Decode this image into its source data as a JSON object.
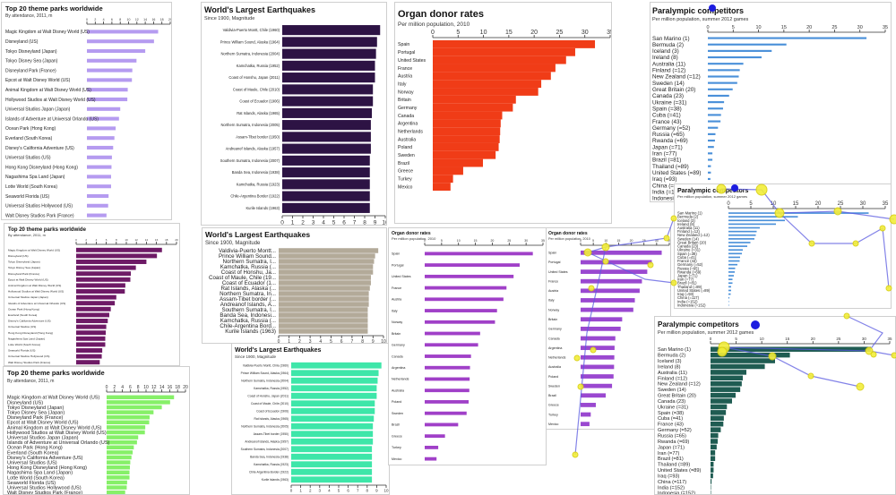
{
  "parks": {
    "title": "Top 20 theme parks worldwide",
    "subtitle": "By attendance, 2011, m",
    "categories": [
      "Magic Kingdom at Walt Disney World (US)",
      "Disneyland (US)",
      "Tokyo Disneyland (Japan)",
      "Tokyo Disney Sea (Japan)",
      "Disneyland Park (France)",
      "Epcot at Walt Disney World (US)",
      "Animal Kingdom at Walt Disney World (US)",
      "Hollywood Studios at Walt Disney World (US)",
      "Universal Studios Japan (Japan)",
      "Islands of Adventure at Universal Orlando (US)",
      "Ocean Park (Hong Kong)",
      "Everland (South Korea)",
      "Disney's California Adventure (US)",
      "Universal Studios (US)",
      "Hong Kong Disneyland (Hong Kong)",
      "Nagashima Spa Land (Japan)",
      "Lotte World (South Korea)",
      "Seaworld Florida (US)",
      "Universal Studios Hollywood (US)",
      "Walt Disney Studios Park (France)"
    ],
    "values": [
      17.1,
      16.1,
      14.0,
      11.9,
      10.9,
      10.8,
      9.8,
      9.7,
      8.0,
      7.7,
      6.9,
      6.6,
      6.3,
      6.0,
      5.9,
      5.8,
      5.8,
      5.2,
      5.1,
      4.7
    ],
    "ticks": [
      0,
      2,
      4,
      6,
      8,
      10,
      12,
      14,
      16,
      18,
      20
    ]
  },
  "quakes": {
    "title": "World's Largest Earthquakes",
    "subtitle": "Since 1900, Magnitude",
    "categories": [
      "Valdivia-Puerto Montt, Chile (1960)",
      "Prince William Sound, Alaska (1964)",
      "Northern Sumatra, Indonesia (2004)",
      "Kamchatka, Russia (1952)",
      "Coast of Honshu, Japan (2011)",
      "Coast of Maule, Chile (2010)",
      "Coast of Ecuador (1906)",
      "Rat Islands, Alaska (1965)",
      "Northern Sumatra, Indonesia (2005)",
      "Assam-Tibet border (1950)",
      "Andreanof Islands, Alaska (1957)",
      "Southern Sumatra, Indonesia (2007)",
      "Banda Sea, Indonesia (1938)",
      "Kamchatka, Russia (1923)",
      "Chile-Argentina Border (1922)",
      "Kurile Islands (1963)"
    ],
    "values": [
      9.5,
      9.2,
      9.1,
      9.0,
      9.0,
      8.8,
      8.8,
      8.7,
      8.6,
      8.6,
      8.6,
      8.5,
      8.5,
      8.5,
      8.5,
      8.5
    ],
    "xlabel": "Magnitude",
    "ticks": [
      0,
      1,
      2,
      3,
      4,
      5,
      6,
      7,
      8,
      9,
      10
    ]
  },
  "quakes_short": {
    "categories": [
      "Valdivia-Puerto Montt...",
      "Prince William Sound...",
      "Northern Sumatra, I...",
      "Kamchatka, Russia (...",
      "Coast of Honshu, Ja...",
      "Coast of Maule, Chile (19...",
      "Coast of Ecuador (1...",
      "Rat Islands, Alaska (...",
      "Northern Sumatra, In...",
      "Assam-Tibet border (...",
      "Andreanof Islands, A...",
      "Southern Sumatra, I...",
      "Banda Sea, Indonesi...",
      "Kamchatka, Russia (...",
      "Chile-Argentina Bord...",
      "Kurile Islands (1963)"
    ]
  },
  "organ": {
    "title": "Organ donor rates",
    "subtitle": "Per million population, 2010",
    "subtitle_short": "Per million population, 2010",
    "categories": [
      "Spain",
      "Portugal",
      "United States",
      "France",
      "Austria",
      "Italy",
      "Norway",
      "Britain",
      "Germany",
      "Canada",
      "Argentina",
      "Netherlands",
      "Australia",
      "Poland",
      "Sweden",
      "Brazil",
      "Greece",
      "Turkey",
      "Mexico"
    ],
    "values": [
      32.0,
      28.1,
      26.3,
      24.2,
      23.3,
      21.4,
      20.8,
      16.4,
      15.8,
      13.7,
      13.4,
      13.3,
      13.2,
      13.0,
      12.4,
      9.9,
      6.0,
      4.0,
      3.5
    ],
    "ticks": [
      0,
      5,
      10,
      15,
      20,
      25,
      30,
      35
    ]
  },
  "para": {
    "title": "Paralympic competitors",
    "subtitle": "Per million population, summer 2012 games",
    "categories": [
      "San Marino (1)",
      "Bermuda (2)",
      "Iceland (3)",
      "Ireland (8)",
      "Australia (11)",
      "Finland (=12)",
      "New Zealand (=12)",
      "Sweden (14)",
      "Great Britain (20)",
      "Canada (23)",
      "Ukraine (=31)",
      "Spain (=38)",
      "Cuba (=41)",
      "France (43)",
      "Germany (=52)",
      "Russia (=65)",
      "Rwanda (=69)",
      "Japan (=71)",
      "Iran (=77)",
      "Brazil (=81)",
      "Thailand (=89)",
      "United States (=89)",
      "Iraq (=93)",
      "China (=117)",
      "India (=152)",
      "Indonesia (=152)"
    ],
    "values": [
      31.3,
      15.5,
      12.6,
      10.6,
      7.0,
      6.3,
      6.1,
      5.8,
      4.9,
      4.2,
      3.2,
      3.0,
      2.6,
      2.5,
      2.0,
      1.5,
      1.4,
      1.2,
      0.9,
      0.9,
      0.6,
      0.6,
      0.5,
      0.2,
      0.02,
      0.02
    ],
    "ticks": [
      0,
      5,
      10,
      15,
      20,
      25,
      30,
      35
    ]
  },
  "colors": {
    "parks_a": "#b59bf0",
    "parks_b": "#6e1a66",
    "parks_c": "#86f068",
    "quakes_a": "#2d1344",
    "quakes_b": "#b3aa99",
    "quakes_c": "#3ee6a9",
    "organ_a": "#f03c17",
    "organ_b": "#a040c8",
    "organ_c": "#9a48d0",
    "para_a": "#4a90d9",
    "para_b": "#4a90d9",
    "para_c": "#1f5c52",
    "highlight": "#f2ee3a",
    "link": "#5a5ae0",
    "marker": "#1c1ce0"
  },
  "chart_data": [
    {
      "type": "bar",
      "orientation": "horizontal",
      "title": "Top 20 theme parks worldwide",
      "subtitle": "By attendance, 2011, m",
      "categories": [
        "Magic Kingdom at Walt Disney World (US)",
        "Disneyland (US)",
        "Tokyo Disneyland (Japan)",
        "Tokyo Disney Sea (Japan)",
        "Disneyland Park (France)",
        "Epcot at Walt Disney World (US)",
        "Animal Kingdom at Walt Disney World (US)",
        "Hollywood Studios at Walt Disney World (US)",
        "Universal Studios Japan (Japan)",
        "Islands of Adventure at Universal Orlando (US)",
        "Ocean Park (Hong Kong)",
        "Everland (South Korea)",
        "Disney's California Adventure (US)",
        "Universal Studios (US)",
        "Hong Kong Disneyland (Hong Kong)",
        "Nagashima Spa Land (Japan)",
        "Lotte World (South Korea)",
        "Seaworld Florida (US)",
        "Universal Studios Hollywood (US)",
        "Walt Disney Studios Park (France)"
      ],
      "values": [
        17.1,
        16.1,
        14.0,
        11.9,
        10.9,
        10.8,
        9.8,
        9.7,
        8.0,
        7.7,
        6.9,
        6.6,
        6.3,
        6.0,
        5.9,
        5.8,
        5.8,
        5.2,
        5.1,
        4.7
      ],
      "xlim": [
        0,
        20
      ]
    },
    {
      "type": "bar",
      "orientation": "horizontal",
      "title": "World's Largest Earthquakes",
      "subtitle": "Since 1900, Magnitude",
      "xlabel": "Magnitude",
      "categories": [
        "Valdivia-Puerto Montt, Chile (1960)",
        "Prince William Sound, Alaska (1964)",
        "Northern Sumatra, Indonesia (2004)",
        "Kamchatka, Russia (1952)",
        "Coast of Honshu, Japan (2011)",
        "Coast of Maule, Chile (2010)",
        "Coast of Ecuador (1906)",
        "Rat Islands, Alaska (1965)",
        "Northern Sumatra, Indonesia (2005)",
        "Assam-Tibet border (1950)",
        "Andreanof Islands, Alaska (1957)",
        "Southern Sumatra, Indonesia (2007)",
        "Banda Sea, Indonesia (1938)",
        "Kamchatka, Russia (1923)",
        "Chile-Argentina Border (1922)",
        "Kurile Islands (1963)"
      ],
      "values": [
        9.5,
        9.2,
        9.1,
        9.0,
        9.0,
        8.8,
        8.8,
        8.7,
        8.6,
        8.6,
        8.6,
        8.5,
        8.5,
        8.5,
        8.5,
        8.5
      ],
      "xlim": [
        0,
        10
      ]
    },
    {
      "type": "bar",
      "orientation": "horizontal",
      "title": "Organ donor rates",
      "subtitle": "Per million population, 2010",
      "categories": [
        "Spain",
        "Portugal",
        "United States",
        "France",
        "Austria",
        "Italy",
        "Norway",
        "Britain",
        "Germany",
        "Canada",
        "Argentina",
        "Netherlands",
        "Australia",
        "Poland",
        "Sweden",
        "Brazil",
        "Greece",
        "Turkey",
        "Mexico"
      ],
      "values": [
        32.0,
        28.1,
        26.3,
        24.2,
        23.3,
        21.4,
        20.8,
        16.4,
        15.8,
        13.7,
        13.4,
        13.3,
        13.2,
        13.0,
        12.4,
        9.9,
        6.0,
        4.0,
        3.5
      ],
      "xlim": [
        0,
        35
      ]
    },
    {
      "type": "bar",
      "orientation": "horizontal",
      "title": "Paralympic competitors",
      "subtitle": "Per million population, summer 2012 games",
      "categories": [
        "San Marino (1)",
        "Bermuda (2)",
        "Iceland (3)",
        "Ireland (8)",
        "Australia (11)",
        "Finland (=12)",
        "New Zealand (=12)",
        "Sweden (14)",
        "Great Britain (20)",
        "Canada (23)",
        "Ukraine (=31)",
        "Spain (=38)",
        "Cuba (=41)",
        "France (43)",
        "Germany (=52)",
        "Russia (=65)",
        "Rwanda (=69)",
        "Japan (=71)",
        "Iran (=77)",
        "Brazil (=81)",
        "Thailand (=89)",
        "United States (=89)",
        "Iraq (=93)",
        "China (=117)",
        "India (=152)",
        "Indonesia (=152)"
      ],
      "values": [
        31.3,
        15.5,
        12.6,
        10.6,
        7.0,
        6.3,
        6.1,
        5.8,
        4.9,
        4.2,
        3.2,
        3.0,
        2.6,
        2.5,
        2.0,
        1.5,
        1.4,
        1.2,
        0.9,
        0.9,
        0.6,
        0.6,
        0.5,
        0.2,
        0.02,
        0.02
      ],
      "xlim": [
        0,
        35
      ]
    }
  ]
}
